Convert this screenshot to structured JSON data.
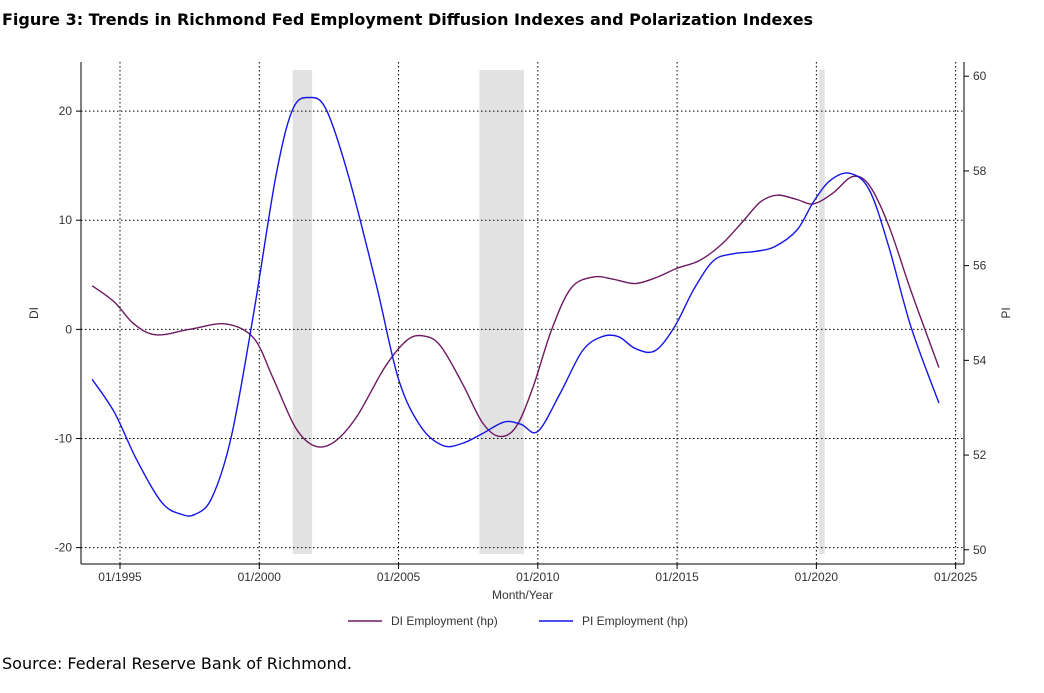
{
  "title": "Figure 3: Trends in Richmond Fed Employment Diffusion Indexes and Polarization Indexes",
  "source": "Source: Federal Reserve Bank of Richmond.",
  "chart_data": {
    "type": "line",
    "xlabel": "Month/Year",
    "ylabel_left": "DI",
    "ylabel_right": "PI",
    "xlim": [
      1993.6,
      2025.3
    ],
    "ylim_left": [
      -21.5,
      24.5
    ],
    "ylim_right": [
      49.7,
      60.3
    ],
    "x_ticks": [
      {
        "value": 1995,
        "label": "01/1995"
      },
      {
        "value": 2000,
        "label": "01/2000"
      },
      {
        "value": 2005,
        "label": "01/2005"
      },
      {
        "value": 2010,
        "label": "01/2010"
      },
      {
        "value": 2015,
        "label": "01/2015"
      },
      {
        "value": 2020,
        "label": "01/2020"
      },
      {
        "value": 2025,
        "label": "01/2025"
      }
    ],
    "y_ticks_left": [
      {
        "value": 20,
        "label": "20"
      },
      {
        "value": 10,
        "label": "10"
      },
      {
        "value": 0,
        "label": "0"
      },
      {
        "value": -10,
        "label": "-10"
      },
      {
        "value": -20,
        "label": "-20"
      }
    ],
    "y_ticks_right": [
      {
        "value": 60,
        "label": "60"
      },
      {
        "value": 58,
        "label": "58"
      },
      {
        "value": 56,
        "label": "56"
      },
      {
        "value": 54,
        "label": "54"
      },
      {
        "value": 52,
        "label": "52"
      },
      {
        "value": 50,
        "label": "50"
      }
    ],
    "grid": true,
    "recessions": [
      [
        2001.2,
        2001.9
      ],
      [
        2007.9,
        2009.5
      ],
      [
        2020.1,
        2020.3
      ]
    ],
    "series": [
      {
        "name": "DI Employment (hp)",
        "axis": "left",
        "color": "#6d1a63",
        "points": [
          [
            1994.0,
            4.0
          ],
          [
            1994.8,
            2.5
          ],
          [
            1995.5,
            0.5
          ],
          [
            1996.3,
            -0.5
          ],
          [
            1997.5,
            0.0
          ],
          [
            1998.8,
            0.5
          ],
          [
            1999.8,
            -0.8
          ],
          [
            2000.5,
            -4.5
          ],
          [
            2001.3,
            -9.0
          ],
          [
            2002.0,
            -10.7
          ],
          [
            2002.7,
            -10.3
          ],
          [
            2003.5,
            -8.0
          ],
          [
            2004.5,
            -3.5
          ],
          [
            2005.3,
            -1.0
          ],
          [
            2005.9,
            -0.6
          ],
          [
            2006.5,
            -1.5
          ],
          [
            2007.3,
            -5.0
          ],
          [
            2008.0,
            -8.5
          ],
          [
            2008.6,
            -9.8
          ],
          [
            2009.2,
            -9.0
          ],
          [
            2009.8,
            -5.5
          ],
          [
            2010.5,
            0.0
          ],
          [
            2011.2,
            3.8
          ],
          [
            2012.0,
            4.8
          ],
          [
            2012.7,
            4.6
          ],
          [
            2013.5,
            4.2
          ],
          [
            2014.3,
            4.8
          ],
          [
            2015.0,
            5.6
          ],
          [
            2015.8,
            6.3
          ],
          [
            2016.6,
            7.8
          ],
          [
            2017.4,
            10.0
          ],
          [
            2018.0,
            11.7
          ],
          [
            2018.6,
            12.3
          ],
          [
            2019.3,
            11.9
          ],
          [
            2019.9,
            11.5
          ],
          [
            2020.6,
            12.5
          ],
          [
            2021.3,
            14.0
          ],
          [
            2021.9,
            13.2
          ],
          [
            2022.6,
            9.5
          ],
          [
            2023.4,
            3.5
          ],
          [
            2024.4,
            -3.5
          ]
        ]
      },
      {
        "name": "PI Employment (hp)",
        "axis": "right",
        "color": "#1414e6",
        "points": [
          [
            1994.0,
            53.6
          ],
          [
            1994.8,
            52.9
          ],
          [
            1995.6,
            51.9
          ],
          [
            1996.5,
            51.0
          ],
          [
            1997.2,
            50.75
          ],
          [
            1997.7,
            50.75
          ],
          [
            1998.3,
            51.1
          ],
          [
            1999.0,
            52.4
          ],
          [
            1999.8,
            55.0
          ],
          [
            2000.6,
            57.9
          ],
          [
            2001.2,
            59.3
          ],
          [
            2001.8,
            59.55
          ],
          [
            2002.4,
            59.3
          ],
          [
            2003.2,
            57.9
          ],
          [
            2004.2,
            55.6
          ],
          [
            2005.0,
            53.6
          ],
          [
            2005.8,
            52.6
          ],
          [
            2006.6,
            52.2
          ],
          [
            2007.3,
            52.25
          ],
          [
            2008.0,
            52.45
          ],
          [
            2008.8,
            52.7
          ],
          [
            2009.4,
            52.65
          ],
          [
            2010.0,
            52.5
          ],
          [
            2010.8,
            53.3
          ],
          [
            2011.6,
            54.2
          ],
          [
            2012.3,
            54.5
          ],
          [
            2012.9,
            54.5
          ],
          [
            2013.5,
            54.25
          ],
          [
            2014.2,
            54.2
          ],
          [
            2014.9,
            54.7
          ],
          [
            2015.6,
            55.5
          ],
          [
            2016.3,
            56.1
          ],
          [
            2017.0,
            56.25
          ],
          [
            2017.8,
            56.3
          ],
          [
            2018.5,
            56.4
          ],
          [
            2019.3,
            56.75
          ],
          [
            2019.9,
            57.35
          ],
          [
            2020.5,
            57.8
          ],
          [
            2021.2,
            57.95
          ],
          [
            2021.9,
            57.6
          ],
          [
            2022.6,
            56.4
          ],
          [
            2023.4,
            54.7
          ],
          [
            2024.4,
            53.1
          ]
        ]
      }
    ]
  }
}
